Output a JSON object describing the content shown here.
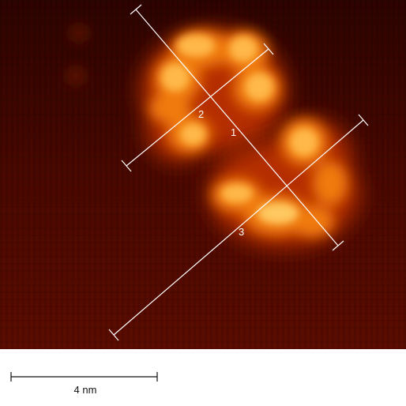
{
  "image": {
    "colormap": [
      "#3a0400",
      "#7a1200",
      "#c53a00",
      "#f07a10",
      "#ffc860"
    ]
  },
  "line_profiles": [
    {
      "label": "1"
    },
    {
      "label": "2"
    },
    {
      "label": "3"
    }
  ],
  "scalebar": {
    "label": "4 nm"
  },
  "colors": {
    "background": "#3a0400",
    "overlay_lines": "#ffffff",
    "panel": "#ffffff"
  }
}
